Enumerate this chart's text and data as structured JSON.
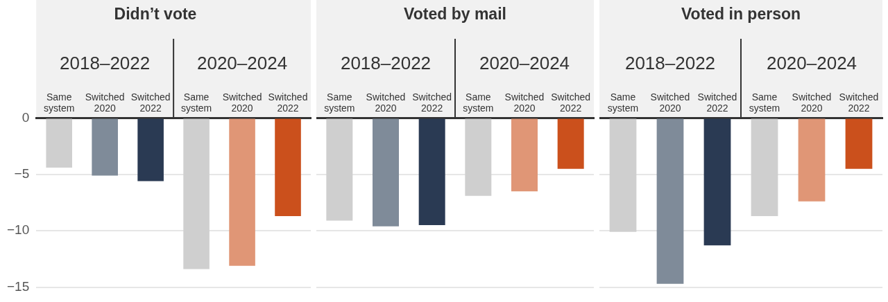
{
  "chart_data": [
    {
      "type": "bar",
      "title": "Didn’t vote",
      "annotations": [
        "2018–2022",
        "2020–2024"
      ],
      "categories": [
        "Same system",
        "Switched 2020",
        "Switched 2022",
        "Same system",
        "Switched 2020",
        "Switched 2022"
      ],
      "values": [
        -4.4,
        -5.1,
        -5.6,
        -13.4,
        -13.1,
        -8.7
      ],
      "colors": [
        "#cfcfcf",
        "#7f8b99",
        "#2a3a53",
        "#cfcfcf",
        "#e09676",
        "#cb501c"
      ],
      "ylim": [
        -15,
        0
      ],
      "yticks": [
        {
          "value": 0,
          "label": "0"
        },
        {
          "value": -5,
          "label": "−5"
        },
        {
          "value": -10,
          "label": "−10"
        },
        {
          "value": -15,
          "label": "−15"
        }
      ],
      "grid": "y"
    },
    {
      "type": "bar",
      "title": "Voted by mail",
      "annotations": [
        "2018–2022",
        "2020–2024"
      ],
      "categories": [
        "Same system",
        "Switched 2020",
        "Switched 2022",
        "Same system",
        "Switched 2020",
        "Switched 2022"
      ],
      "values": [
        -9.1,
        -9.6,
        -9.5,
        -6.9,
        -6.5,
        -4.5
      ],
      "colors": [
        "#cfcfcf",
        "#7f8b99",
        "#2a3a53",
        "#cfcfcf",
        "#e09676",
        "#cb501c"
      ],
      "ylim": [
        -15,
        0
      ],
      "yticks": [
        0,
        -5,
        -10,
        -15
      ],
      "grid": "y",
      "tick_labels": "x"
    },
    {
      "type": "bar",
      "title": "Voted in person",
      "annotations": [
        "2018–2022",
        "2020–2024"
      ],
      "categories": [
        "Same system",
        "Switched 2020",
        "Switched 2022",
        "Same system",
        "Switched 2020",
        "Switched 2022"
      ],
      "values": [
        -10.1,
        -14.7,
        -11.3,
        -8.7,
        -7.4,
        -4.5
      ],
      "colors": [
        "#cfcfcf",
        "#7f8b99",
        "#2a3a53",
        "#cfcfcf",
        "#e09676",
        "#cb501c"
      ],
      "ylim": [
        -15,
        0
      ],
      "yticks": [
        0,
        -5,
        -10,
        -15
      ],
      "grid": "y",
      "tick_labels": "x"
    }
  ]
}
